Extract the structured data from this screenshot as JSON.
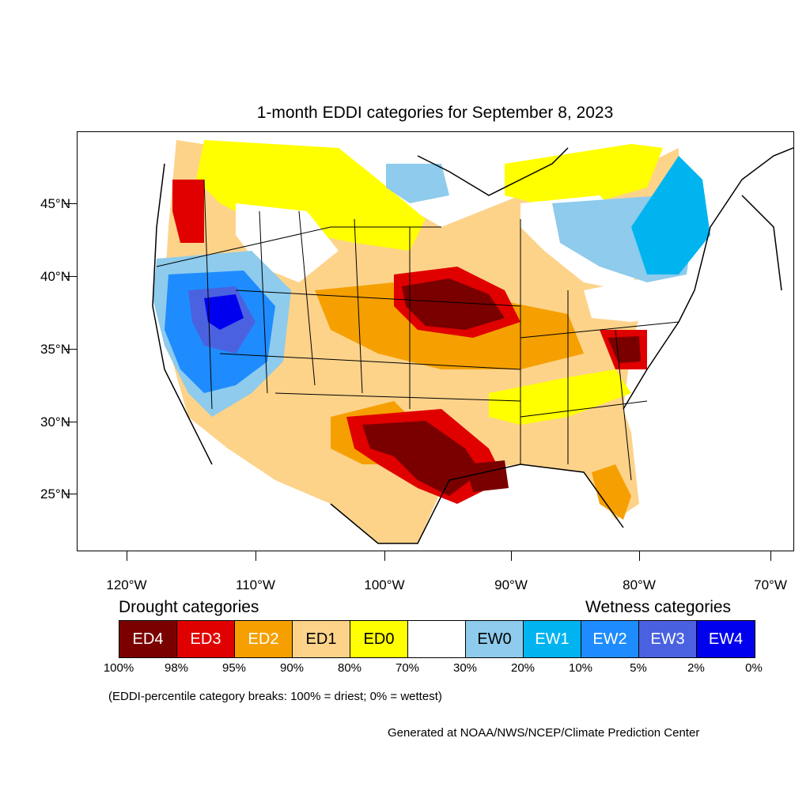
{
  "title": "1-month EDDI categories for September 8, 2023",
  "lat_labels": [
    "45°N",
    "40°N",
    "35°N",
    "30°N",
    "25°N"
  ],
  "lon_labels": [
    "120°W",
    "110°W",
    "100°W",
    "90°W",
    "80°W",
    "70°W"
  ],
  "legend": {
    "drought_heading": "Drought categories",
    "wetness_heading": "Wetness categories",
    "categories": [
      {
        "label": "ED4",
        "color": "#7a0000"
      },
      {
        "label": "ED3",
        "color": "#e00000"
      },
      {
        "label": "ED2",
        "color": "#f5a000"
      },
      {
        "label": "ED1",
        "color": "#fdd38a"
      },
      {
        "label": "ED0",
        "color": "#ffff00"
      },
      {
        "label": "",
        "color": "#ffffff"
      },
      {
        "label": "EW0",
        "color": "#8ecbec"
      },
      {
        "label": "EW1",
        "color": "#00b4f0"
      },
      {
        "label": "EW2",
        "color": "#1e8cff"
      },
      {
        "label": "EW3",
        "color": "#4a62e0"
      },
      {
        "label": "EW4",
        "color": "#0000ee"
      }
    ],
    "breaks": [
      "100%",
      "98%",
      "95%",
      "90%",
      "80%",
      "70%",
      "30%",
      "20%",
      "10%",
      "5%",
      "2%",
      "0%"
    ]
  },
  "note": "(EDDI-percentile category breaks: 100% = driest; 0% = wettest)",
  "credit": "Generated at NOAA/NWS/NCEP/Climate Prediction Center"
}
